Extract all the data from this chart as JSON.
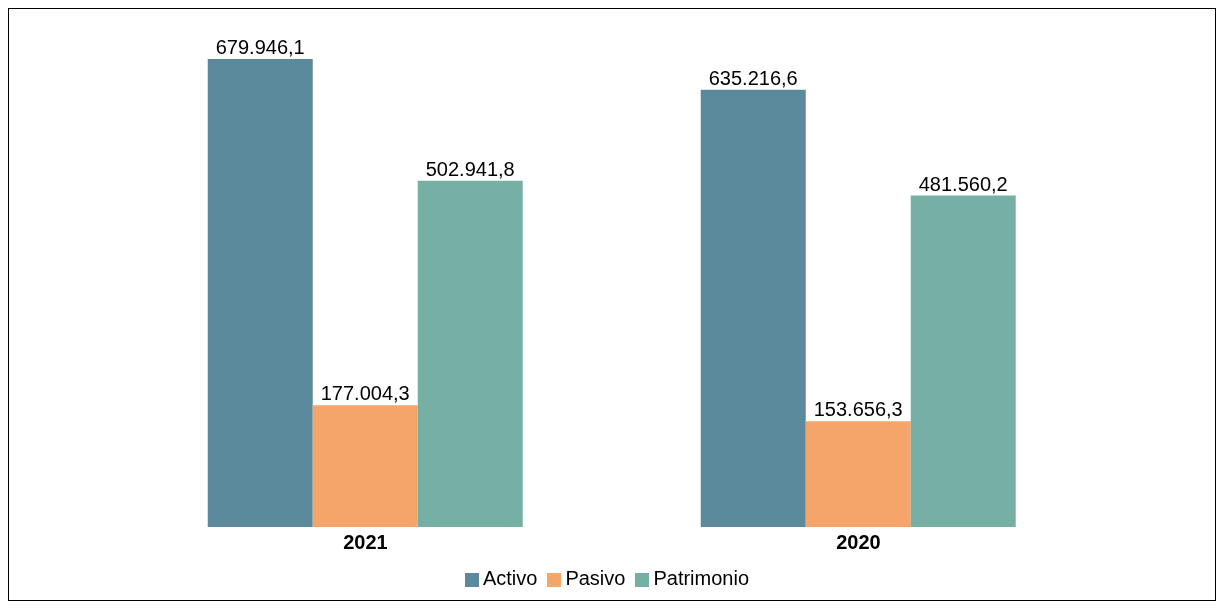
{
  "chart_data": {
    "type": "bar",
    "categories": [
      "2021",
      "2020"
    ],
    "series": [
      {
        "name": "Activo",
        "color": "#5a8a9c",
        "values": [
          679946.1,
          635216.6
        ],
        "value_labels": [
          "679.946,1",
          "635.216,6"
        ]
      },
      {
        "name": "Pasivo",
        "color": "#f5a46a",
        "values": [
          177004.3,
          153656.3
        ],
        "value_labels": [
          "177.004,3",
          "153.656,3"
        ]
      },
      {
        "name": "Patrimonio",
        "color": "#76b0a4",
        "values": [
          502941.8,
          481560.2
        ],
        "value_labels": [
          "502.941,8",
          "481.560,2"
        ]
      }
    ],
    "legend": "bottom",
    "grid": false
  }
}
